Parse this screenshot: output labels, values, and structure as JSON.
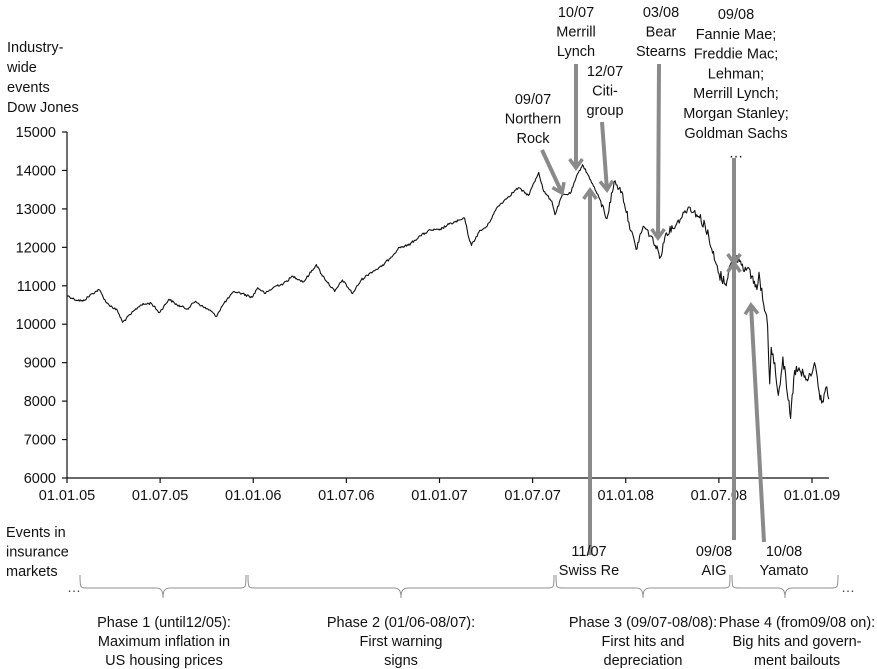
{
  "chart_data": {
    "type": "line",
    "ylabel": [
      "Industry-",
      "wide",
      "events",
      "Dow Jones"
    ],
    "ylim": [
      6000,
      15000
    ],
    "y_ticks": [
      "6000",
      "7000",
      "8000",
      "9000",
      "10000",
      "11000",
      "12000",
      "13000",
      "14000",
      "15000"
    ],
    "x_ticks": [
      "01.01.05",
      "01.07.05",
      "01.01.06",
      "01.07.06",
      "01.01.07",
      "01.07.07",
      "01.01.08",
      "01.07.08",
      "01.01.09"
    ],
    "xlim": [
      "2005-01-01",
      "2009-02-06"
    ],
    "series": [
      {
        "values_approx": [
          [
            "2005-01-01",
            10750
          ],
          [
            "2005-01-15",
            10650
          ],
          [
            "2005-02-01",
            10600
          ],
          [
            "2005-02-20",
            10800
          ],
          [
            "2005-03-05",
            10900
          ],
          [
            "2005-03-20",
            10550
          ],
          [
            "2005-04-10",
            10350
          ],
          [
            "2005-04-20",
            10050
          ],
          [
            "2005-05-05",
            10250
          ],
          [
            "2005-05-25",
            10500
          ],
          [
            "2005-06-15",
            10550
          ],
          [
            "2005-07-01",
            10300
          ],
          [
            "2005-07-20",
            10650
          ],
          [
            "2005-08-05",
            10500
          ],
          [
            "2005-08-25",
            10400
          ],
          [
            "2005-09-10",
            10600
          ],
          [
            "2005-09-25",
            10450
          ],
          [
            "2005-10-10",
            10350
          ],
          [
            "2005-10-20",
            10200
          ],
          [
            "2005-11-05",
            10550
          ],
          [
            "2005-11-25",
            10850
          ],
          [
            "2005-12-10",
            10800
          ],
          [
            "2005-12-30",
            10700
          ],
          [
            "2006-01-10",
            10950
          ],
          [
            "2006-01-25",
            10800
          ],
          [
            "2006-02-15",
            11000
          ],
          [
            "2006-03-01",
            11050
          ],
          [
            "2006-03-20",
            11250
          ],
          [
            "2006-04-10",
            11100
          ],
          [
            "2006-05-05",
            11550
          ],
          [
            "2006-05-15",
            11300
          ],
          [
            "2006-06-10",
            10850
          ],
          [
            "2006-06-25",
            11150
          ],
          [
            "2006-07-15",
            10800
          ],
          [
            "2006-08-01",
            11150
          ],
          [
            "2006-08-20",
            11350
          ],
          [
            "2006-09-10",
            11500
          ],
          [
            "2006-09-25",
            11700
          ],
          [
            "2006-10-15",
            12000
          ],
          [
            "2006-11-01",
            12050
          ],
          [
            "2006-11-25",
            12300
          ],
          [
            "2006-12-15",
            12450
          ],
          [
            "2007-01-01",
            12450
          ],
          [
            "2007-01-20",
            12600
          ],
          [
            "2007-02-20",
            12750
          ],
          [
            "2007-02-28",
            12250
          ],
          [
            "2007-03-05",
            12050
          ],
          [
            "2007-03-20",
            12400
          ],
          [
            "2007-04-05",
            12550
          ],
          [
            "2007-04-25",
            13050
          ],
          [
            "2007-05-15",
            13300
          ],
          [
            "2007-06-05",
            13550
          ],
          [
            "2007-06-25",
            13350
          ],
          [
            "2007-07-15",
            13950
          ],
          [
            "2007-07-25",
            13450
          ],
          [
            "2007-08-10",
            13200
          ],
          [
            "2007-08-16",
            12850
          ],
          [
            "2007-08-30",
            13350
          ],
          [
            "2007-09-15",
            13400
          ],
          [
            "2007-10-01",
            13950
          ],
          [
            "2007-10-09",
            14150
          ],
          [
            "2007-10-25",
            13750
          ],
          [
            "2007-11-10",
            13300
          ],
          [
            "2007-11-26",
            12750
          ],
          [
            "2007-12-10",
            13700
          ],
          [
            "2007-12-25",
            13450
          ],
          [
            "2008-01-08",
            12650
          ],
          [
            "2008-01-22",
            11950
          ],
          [
            "2008-02-05",
            12550
          ],
          [
            "2008-02-20",
            12300
          ],
          [
            "2008-03-10",
            11750
          ],
          [
            "2008-03-20",
            12350
          ],
          [
            "2008-04-10",
            12600
          ],
          [
            "2008-04-25",
            12900
          ],
          [
            "2008-05-05",
            13050
          ],
          [
            "2008-05-20",
            12850
          ],
          [
            "2008-06-05",
            12600
          ],
          [
            "2008-06-20",
            11850
          ],
          [
            "2008-07-01",
            11350
          ],
          [
            "2008-07-15",
            11050
          ],
          [
            "2008-07-25",
            11550
          ],
          [
            "2008-08-10",
            11750
          ],
          [
            "2008-08-25",
            11400
          ],
          [
            "2008-09-05",
            11250
          ],
          [
            "2008-09-15",
            10900
          ],
          [
            "2008-09-19",
            11350
          ],
          [
            "2008-09-30",
            10350
          ],
          [
            "2008-10-06",
            9950
          ],
          [
            "2008-10-10",
            8450
          ],
          [
            "2008-10-13",
            9400
          ],
          [
            "2008-10-20",
            9000
          ],
          [
            "2008-10-27",
            8150
          ],
          [
            "2008-11-05",
            9150
          ],
          [
            "2008-11-12",
            8350
          ],
          [
            "2008-11-20",
            7550
          ],
          [
            "2008-11-28",
            8800
          ],
          [
            "2008-12-10",
            8750
          ],
          [
            "2008-12-20",
            8550
          ],
          [
            "2008-12-30",
            8650
          ],
          [
            "2009-01-06",
            9000
          ],
          [
            "2009-01-15",
            8250
          ],
          [
            "2009-01-20",
            7950
          ],
          [
            "2009-01-28",
            8350
          ],
          [
            "2009-02-03",
            8050
          ]
        ]
      }
    ],
    "industry_events": [
      {
        "date": "2007-09-14",
        "label": [
          "09/07",
          "Northern",
          "Rock"
        ]
      },
      {
        "date": "2007-10-09",
        "label": [
          "10/07",
          "Merrill",
          "Lynch"
        ]
      },
      {
        "date": "2007-12-01",
        "label": [
          "12/07",
          "Citi-",
          "group"
        ]
      },
      {
        "date": "2008-03-14",
        "label": [
          "03/08",
          "Bear",
          "Stearns"
        ]
      },
      {
        "date": "2008-09-15",
        "label": [
          "09/08",
          "Fannie Mae;",
          "Freddie Mac;",
          "Lehman;",
          "Merrill Lynch;",
          "Morgan Stanley;",
          "Goldman Sachs",
          "…"
        ]
      }
    ],
    "insurance_label": [
      "Events in",
      "insurance",
      "markets"
    ],
    "insurance_events": [
      {
        "date": "2007-11-05",
        "label": [
          "11/07",
          "Swiss Re"
        ]
      },
      {
        "date": "2008-09-16",
        "label": [
          "09/08",
          "AIG"
        ]
      },
      {
        "date": "2008-10-10",
        "label": [
          "10/08",
          "Yamato"
        ]
      }
    ],
    "phases": [
      {
        "from": "2004-12-20",
        "to": "2006-01-01",
        "label": [
          "Phase 1 (until12/05):",
          "Maximum inflation in",
          "US housing prices"
        ]
      },
      {
        "from": "2006-01-01",
        "to": "2007-08-31",
        "label": [
          "Phase 2 (01/06-08/07):",
          "First warning",
          "signs"
        ]
      },
      {
        "from": "2007-08-31",
        "to": "2008-09-01",
        "label": [
          "Phase 3 (09/07-08/08):",
          "First hits and",
          "depreciation"
        ]
      },
      {
        "from": "2008-09-01",
        "to": "2009-04-15",
        "label": [
          "Phase 4 (from09/08 on):",
          "Big hits and govern-",
          "ment bailouts"
        ]
      }
    ],
    "ellipsis": "…",
    "colors": {
      "series": "#111111",
      "arrows": "#8a8a8a",
      "braces": "#8f8f8f"
    }
  }
}
